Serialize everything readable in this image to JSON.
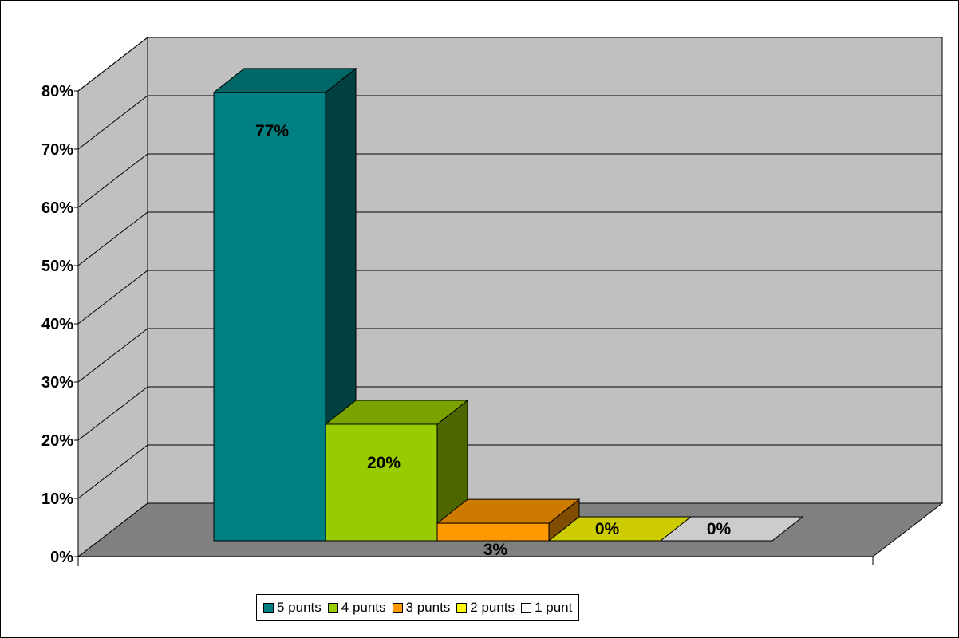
{
  "chart_data": {
    "type": "bar",
    "style": "3d",
    "categories": [
      "5 punts",
      "4 punts",
      "3 punts",
      "2 punts",
      "1 punt"
    ],
    "values": [
      77,
      20,
      3,
      0,
      0
    ],
    "data_labels": [
      "77%",
      "20%",
      "3%",
      "0%",
      "0%"
    ],
    "yticks": [
      "0%",
      "10%",
      "20%",
      "30%",
      "40%",
      "50%",
      "60%",
      "70%",
      "80%"
    ],
    "ylim": [
      0,
      80
    ],
    "grid": true,
    "legend_position": "bottom",
    "colors": {
      "front": [
        "#008080",
        "#99cc00",
        "#ff9900",
        "#ffff00",
        "#ffffff"
      ],
      "top": [
        "#006666",
        "#7aa300",
        "#cc7a00",
        "#cccc00",
        "#cccccc"
      ],
      "side": [
        "#004040",
        "#4d6600",
        "#804d00",
        "#808000",
        "#808080"
      ],
      "wall": "#c0c0c0",
      "floor": "#808080"
    }
  }
}
